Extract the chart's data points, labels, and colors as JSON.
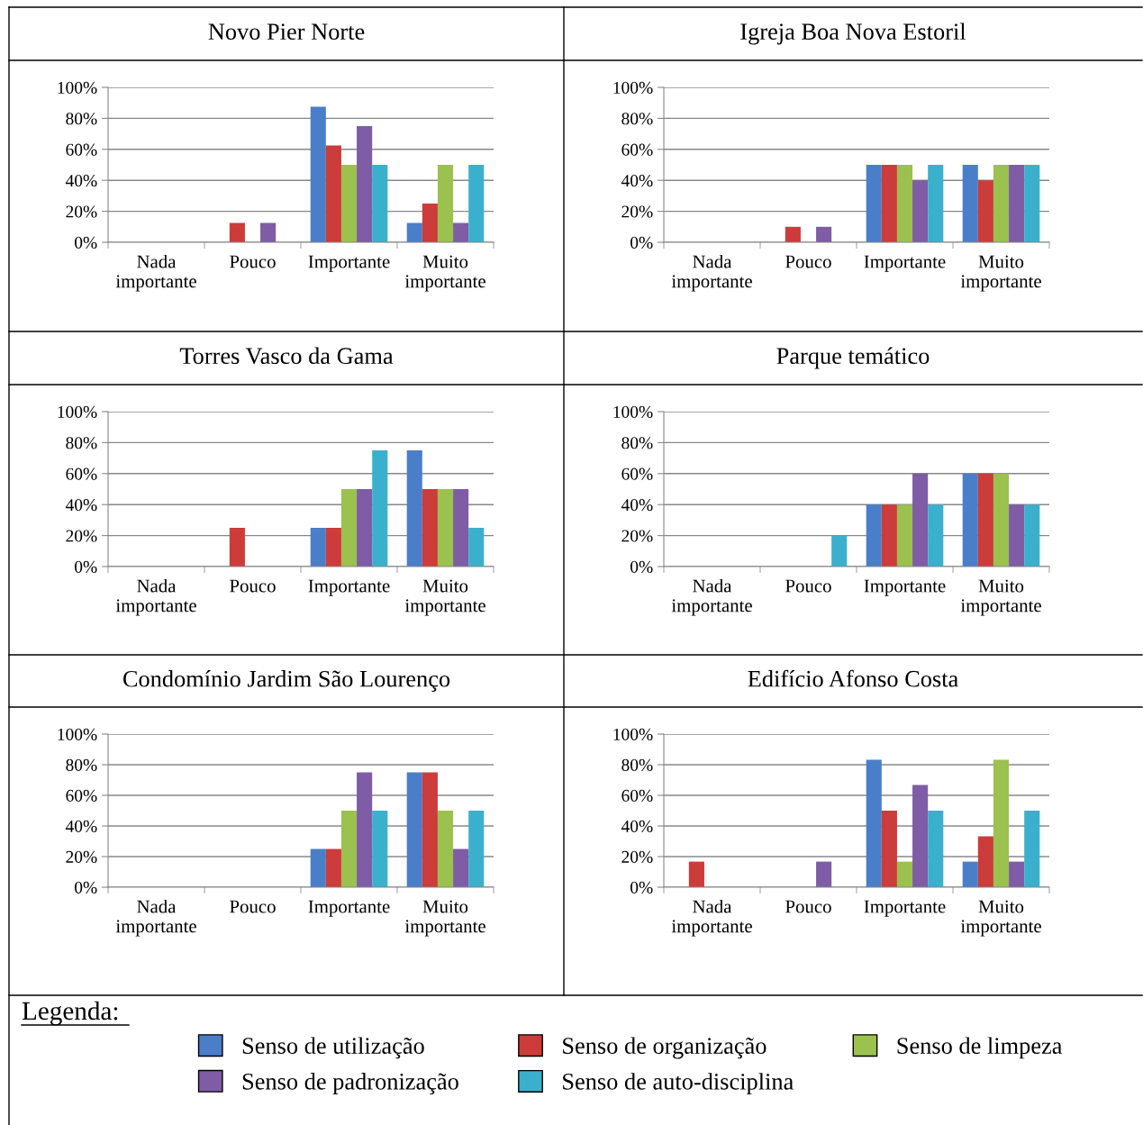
{
  "chart_data": [
    {
      "type": "bar",
      "title": "Novo Pier Norte",
      "categories": [
        "Nada importante",
        "Pouco",
        "Importante",
        "Muito importante"
      ],
      "ylim": [
        0,
        100
      ],
      "yticks": [
        {
          "value": 0,
          "label": "0%"
        },
        {
          "value": 20,
          "label": "20%"
        },
        {
          "value": 40,
          "label": "40%"
        },
        {
          "value": 60,
          "label": "60%"
        },
        {
          "value": 80,
          "label": "80%"
        },
        {
          "value": 100,
          "label": "100%"
        }
      ],
      "grid": "y",
      "legend": false,
      "series": [
        {
          "color": "#4a7ec8",
          "values": [
            0,
            0,
            87.5,
            12.5
          ]
        },
        {
          "color": "#cc3c3a",
          "values": [
            0,
            12.5,
            62.5,
            25
          ]
        },
        {
          "color": "#9bc14e",
          "values": [
            0,
            0,
            50,
            50
          ]
        },
        {
          "color": "#7e5ca6",
          "values": [
            0,
            12.5,
            75,
            12.5
          ]
        },
        {
          "color": "#3bb0cc",
          "values": [
            0,
            0,
            50,
            50
          ]
        }
      ]
    },
    {
      "type": "bar",
      "title": "Igreja Boa Nova Estoril",
      "categories": [
        "Nada importante",
        "Pouco",
        "Importante",
        "Muito importante"
      ],
      "ylim": [
        0,
        100
      ],
      "yticks": [
        {
          "value": 0,
          "label": "0%"
        },
        {
          "value": 20,
          "label": "20%"
        },
        {
          "value": 40,
          "label": "40%"
        },
        {
          "value": 60,
          "label": "60%"
        },
        {
          "value": 80,
          "label": "80%"
        },
        {
          "value": 100,
          "label": "100%"
        }
      ],
      "grid": "y",
      "legend": false,
      "series": [
        {
          "color": "#4a7ec8",
          "values": [
            0,
            0,
            50,
            50
          ]
        },
        {
          "color": "#cc3c3a",
          "values": [
            0,
            10,
            50,
            40
          ]
        },
        {
          "color": "#9bc14e",
          "values": [
            0,
            0,
            50,
            50
          ]
        },
        {
          "color": "#7e5ca6",
          "values": [
            0,
            10,
            40,
            50
          ]
        },
        {
          "color": "#3bb0cc",
          "values": [
            0,
            0,
            50,
            50
          ]
        }
      ]
    },
    {
      "type": "bar",
      "title": "Torres Vasco da Gama",
      "categories": [
        "Nada importante",
        "Pouco",
        "Importante",
        "Muito importante"
      ],
      "ylim": [
        0,
        100
      ],
      "yticks": [
        {
          "value": 0,
          "label": "0%"
        },
        {
          "value": 20,
          "label": "20%"
        },
        {
          "value": 40,
          "label": "40%"
        },
        {
          "value": 60,
          "label": "60%"
        },
        {
          "value": 80,
          "label": "80%"
        },
        {
          "value": 100,
          "label": "100%"
        }
      ],
      "grid": "y",
      "legend": false,
      "series": [
        {
          "color": "#4a7ec8",
          "values": [
            0,
            0,
            25,
            75
          ]
        },
        {
          "color": "#cc3c3a",
          "values": [
            0,
            25,
            25,
            50
          ]
        },
        {
          "color": "#9bc14e",
          "values": [
            0,
            0,
            50,
            50
          ]
        },
        {
          "color": "#7e5ca6",
          "values": [
            0,
            0,
            50,
            50
          ]
        },
        {
          "color": "#3bb0cc",
          "values": [
            0,
            0,
            75,
            25
          ]
        }
      ]
    },
    {
      "type": "bar",
      "title": "Parque temático",
      "categories": [
        "Nada importante",
        "Pouco",
        "Importante",
        "Muito importante"
      ],
      "ylim": [
        0,
        100
      ],
      "yticks": [
        {
          "value": 0,
          "label": "0%"
        },
        {
          "value": 20,
          "label": "20%"
        },
        {
          "value": 40,
          "label": "40%"
        },
        {
          "value": 60,
          "label": "60%"
        },
        {
          "value": 80,
          "label": "80%"
        },
        {
          "value": 100,
          "label": "100%"
        }
      ],
      "grid": "y",
      "legend": false,
      "series": [
        {
          "color": "#4a7ec8",
          "values": [
            0,
            0,
            40,
            60
          ]
        },
        {
          "color": "#cc3c3a",
          "values": [
            0,
            0,
            40,
            60
          ]
        },
        {
          "color": "#9bc14e",
          "values": [
            0,
            0,
            40,
            60
          ]
        },
        {
          "color": "#7e5ca6",
          "values": [
            0,
            0,
            60,
            40
          ]
        },
        {
          "color": "#3bb0cc",
          "values": [
            0,
            20,
            40,
            40
          ]
        }
      ]
    },
    {
      "type": "bar",
      "title": "Condomínio Jardim São Lourenço",
      "categories": [
        "Nada importante",
        "Pouco",
        "Importante",
        "Muito importante"
      ],
      "ylim": [
        0,
        100
      ],
      "yticks": [
        {
          "value": 0,
          "label": "0%"
        },
        {
          "value": 20,
          "label": "20%"
        },
        {
          "value": 40,
          "label": "40%"
        },
        {
          "value": 60,
          "label": "60%"
        },
        {
          "value": 80,
          "label": "80%"
        },
        {
          "value": 100,
          "label": "100%"
        }
      ],
      "grid": "y",
      "legend": false,
      "series": [
        {
          "color": "#4a7ec8",
          "values": [
            0,
            0,
            25,
            75
          ]
        },
        {
          "color": "#cc3c3a",
          "values": [
            0,
            0,
            25,
            75
          ]
        },
        {
          "color": "#9bc14e",
          "values": [
            0,
            0,
            50,
            50
          ]
        },
        {
          "color": "#7e5ca6",
          "values": [
            0,
            0,
            75,
            25
          ]
        },
        {
          "color": "#3bb0cc",
          "values": [
            0,
            0,
            50,
            50
          ]
        }
      ]
    },
    {
      "type": "bar",
      "title": "Edifício Afonso Costa",
      "categories": [
        "Nada importante",
        "Pouco",
        "Importante",
        "Muito importante"
      ],
      "ylim": [
        0,
        100
      ],
      "yticks": [
        {
          "value": 0,
          "label": "0%"
        },
        {
          "value": 20,
          "label": "20%"
        },
        {
          "value": 40,
          "label": "40%"
        },
        {
          "value": 60,
          "label": "60%"
        },
        {
          "value": 80,
          "label": "80%"
        },
        {
          "value": 100,
          "label": "100%"
        }
      ],
      "grid": "y",
      "legend": "bottom",
      "legend_title": "Legenda:",
      "series": [
        {
          "name": "Senso de utilização",
          "color": "#4a7ec8",
          "values": [
            0,
            0,
            83.3,
            16.7
          ]
        },
        {
          "name": "Senso de organização",
          "color": "#cc3c3a",
          "values": [
            16.7,
            0,
            50,
            33.3
          ]
        },
        {
          "name": "Senso de limpeza",
          "color": "#9bc14e",
          "values": [
            0,
            0,
            16.7,
            83.3
          ]
        },
        {
          "name": "Senso de padronização",
          "color": "#7e5ca6",
          "values": [
            0,
            16.7,
            66.7,
            16.7
          ]
        },
        {
          "name": "Senso de auto-disciplina",
          "color": "#3bb0cc",
          "values": [
            0,
            0,
            50,
            50
          ]
        }
      ]
    }
  ]
}
